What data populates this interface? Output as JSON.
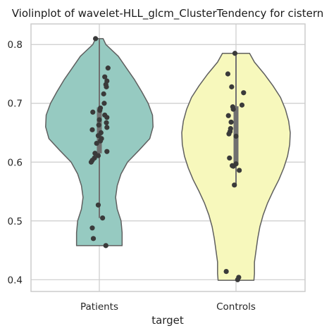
{
  "chart_data": {
    "type": "violin",
    "title": "Violinplot of wavelet-HLL_glcm_ClusterTendency for cistern",
    "xlabel": "target",
    "ylabel": "",
    "categories": [
      "Patients",
      "Controls"
    ],
    "ylim": [
      0.38,
      0.835
    ],
    "yticks": [
      0.4,
      0.5,
      0.6,
      0.7,
      0.8
    ],
    "ytick_labels": [
      "0.4",
      "0.5",
      "0.6",
      "0.7",
      "0.8"
    ],
    "grid": "horizontal",
    "colors": {
      "patients_fill": "#96cac1",
      "controls_fill": "#f7f8bc",
      "violin_edge": "#5f5f5f",
      "points": "#3a3a3a",
      "box": "#707070",
      "grid": "#cccccc",
      "spine": "#cccccc"
    },
    "violins": [
      {
        "category": "Patients",
        "min": 0.458,
        "max": 0.81,
        "q1": 0.615,
        "median": 0.668,
        "q3": 0.693,
        "whisker_low": 0.505,
        "whisker_high": 0.81,
        "profile": [
          [
            0.458,
            0.42
          ],
          [
            0.48,
            0.42
          ],
          [
            0.5,
            0.4
          ],
          [
            0.52,
            0.33
          ],
          [
            0.54,
            0.3
          ],
          [
            0.56,
            0.33
          ],
          [
            0.58,
            0.4
          ],
          [
            0.6,
            0.52
          ],
          [
            0.62,
            0.73
          ],
          [
            0.64,
            0.93
          ],
          [
            0.66,
            0.99
          ],
          [
            0.68,
            0.98
          ],
          [
            0.7,
            0.9
          ],
          [
            0.72,
            0.78
          ],
          [
            0.74,
            0.65
          ],
          [
            0.76,
            0.5
          ],
          [
            0.78,
            0.35
          ],
          [
            0.8,
            0.12
          ],
          [
            0.81,
            0.07
          ]
        ],
        "points": [
          [
            0.81,
            -0.07
          ],
          [
            0.76,
            0.16
          ],
          [
            0.745,
            0.1
          ],
          [
            0.738,
            0.14
          ],
          [
            0.732,
            0.12
          ],
          [
            0.728,
            0.13
          ],
          [
            0.716,
            0.08
          ],
          [
            0.7,
            0.09
          ],
          [
            0.692,
            0.02
          ],
          [
            0.688,
            0.01
          ],
          [
            0.685,
            -0.12
          ],
          [
            0.68,
            0.1
          ],
          [
            0.676,
            0.14
          ],
          [
            0.672,
            0.0
          ],
          [
            0.667,
            0.13
          ],
          [
            0.663,
            -0.01
          ],
          [
            0.659,
            0.14
          ],
          [
            0.655,
            -0.13
          ],
          [
            0.65,
            0.03
          ],
          [
            0.645,
            -0.02
          ],
          [
            0.64,
            0.04
          ],
          [
            0.636,
            0.02
          ],
          [
            0.632,
            -0.05
          ],
          [
            0.618,
            0.14
          ],
          [
            0.615,
            -0.08
          ],
          [
            0.611,
            -0.02
          ],
          [
            0.607,
            -0.09
          ],
          [
            0.603,
            -0.13
          ],
          [
            0.6,
            -0.15
          ],
          [
            0.527,
            -0.02
          ],
          [
            0.505,
            0.06
          ],
          [
            0.488,
            -0.13
          ],
          [
            0.47,
            -0.11
          ],
          [
            0.458,
            0.12
          ]
        ]
      },
      {
        "category": "Controls",
        "min": 0.399,
        "max": 0.785,
        "q1": 0.595,
        "median": 0.655,
        "q3": 0.695,
        "whisker_low": 0.56,
        "whisker_high": 0.785,
        "profile": [
          [
            0.399,
            0.33
          ],
          [
            0.41,
            0.34
          ],
          [
            0.43,
            0.34
          ],
          [
            0.45,
            0.37
          ],
          [
            0.47,
            0.4
          ],
          [
            0.49,
            0.44
          ],
          [
            0.51,
            0.5
          ],
          [
            0.53,
            0.58
          ],
          [
            0.55,
            0.68
          ],
          [
            0.57,
            0.79
          ],
          [
            0.59,
            0.88
          ],
          [
            0.61,
            0.95
          ],
          [
            0.63,
            0.99
          ],
          [
            0.65,
            1.0
          ],
          [
            0.67,
            0.97
          ],
          [
            0.69,
            0.91
          ],
          [
            0.71,
            0.82
          ],
          [
            0.73,
            0.68
          ],
          [
            0.75,
            0.52
          ],
          [
            0.77,
            0.34
          ],
          [
            0.785,
            0.25
          ]
        ],
        "points": [
          [
            0.785,
            -0.02
          ],
          [
            0.75,
            -0.15
          ],
          [
            0.728,
            -0.08
          ],
          [
            0.718,
            0.14
          ],
          [
            0.697,
            0.11
          ],
          [
            0.694,
            -0.06
          ],
          [
            0.69,
            -0.05
          ],
          [
            0.679,
            -0.14
          ],
          [
            0.668,
            -0.09
          ],
          [
            0.657,
            -0.1
          ],
          [
            0.652,
            -0.11
          ],
          [
            0.648,
            -0.13
          ],
          [
            0.644,
            0.0
          ],
          [
            0.607,
            -0.12
          ],
          [
            0.597,
            0.0
          ],
          [
            0.594,
            -0.07
          ],
          [
            0.593,
            -0.05
          ],
          [
            0.586,
            0.06
          ],
          [
            0.561,
            -0.03
          ],
          [
            0.414,
            -0.18
          ],
          [
            0.404,
            0.05
          ],
          [
            0.4,
            0.03
          ]
        ]
      }
    ]
  }
}
